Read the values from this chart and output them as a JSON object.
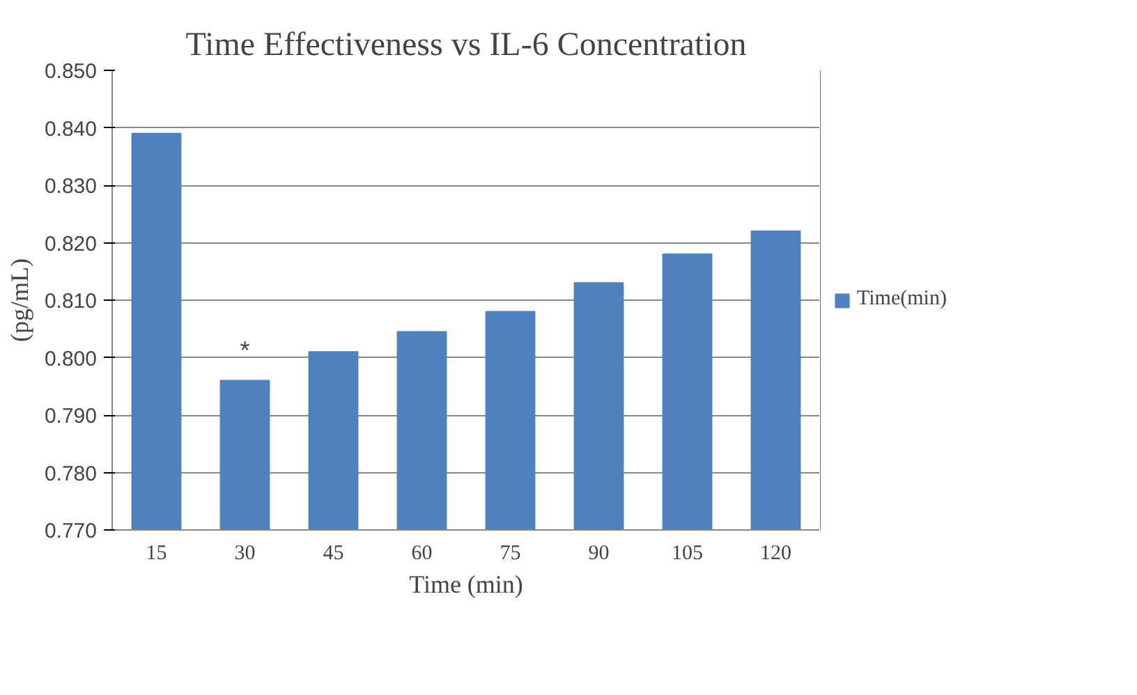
{
  "chart_data": {
    "type": "bar",
    "title": "Time Effectiveness vs IL-6 Concentration",
    "xlabel": "Time (min)",
    "ylabel": "(pg/mL)",
    "categories": [
      "15",
      "30",
      "45",
      "60",
      "75",
      "90",
      "105",
      "120"
    ],
    "series": [
      {
        "name": "Time(min)",
        "color": "#4f81bd",
        "values": [
          0.839,
          0.796,
          0.801,
          0.8045,
          0.808,
          0.813,
          0.818,
          0.822
        ]
      }
    ],
    "ylim": [
      0.77,
      0.85
    ],
    "yticks": [
      {
        "value": 0.77,
        "label": "0.770"
      },
      {
        "value": 0.78,
        "label": "0.780"
      },
      {
        "value": 0.79,
        "label": "0.790"
      },
      {
        "value": 0.8,
        "label": "0.800"
      },
      {
        "value": 0.81,
        "label": "0.810"
      },
      {
        "value": 0.82,
        "label": "0.820"
      },
      {
        "value": 0.83,
        "label": "0.830"
      },
      {
        "value": 0.84,
        "label": "0.840"
      },
      {
        "value": 0.85,
        "label": "0.850"
      }
    ],
    "grid": "y",
    "legend": "right",
    "annotations": [
      {
        "text": "*",
        "x": "30",
        "y": 0.796
      }
    ]
  }
}
